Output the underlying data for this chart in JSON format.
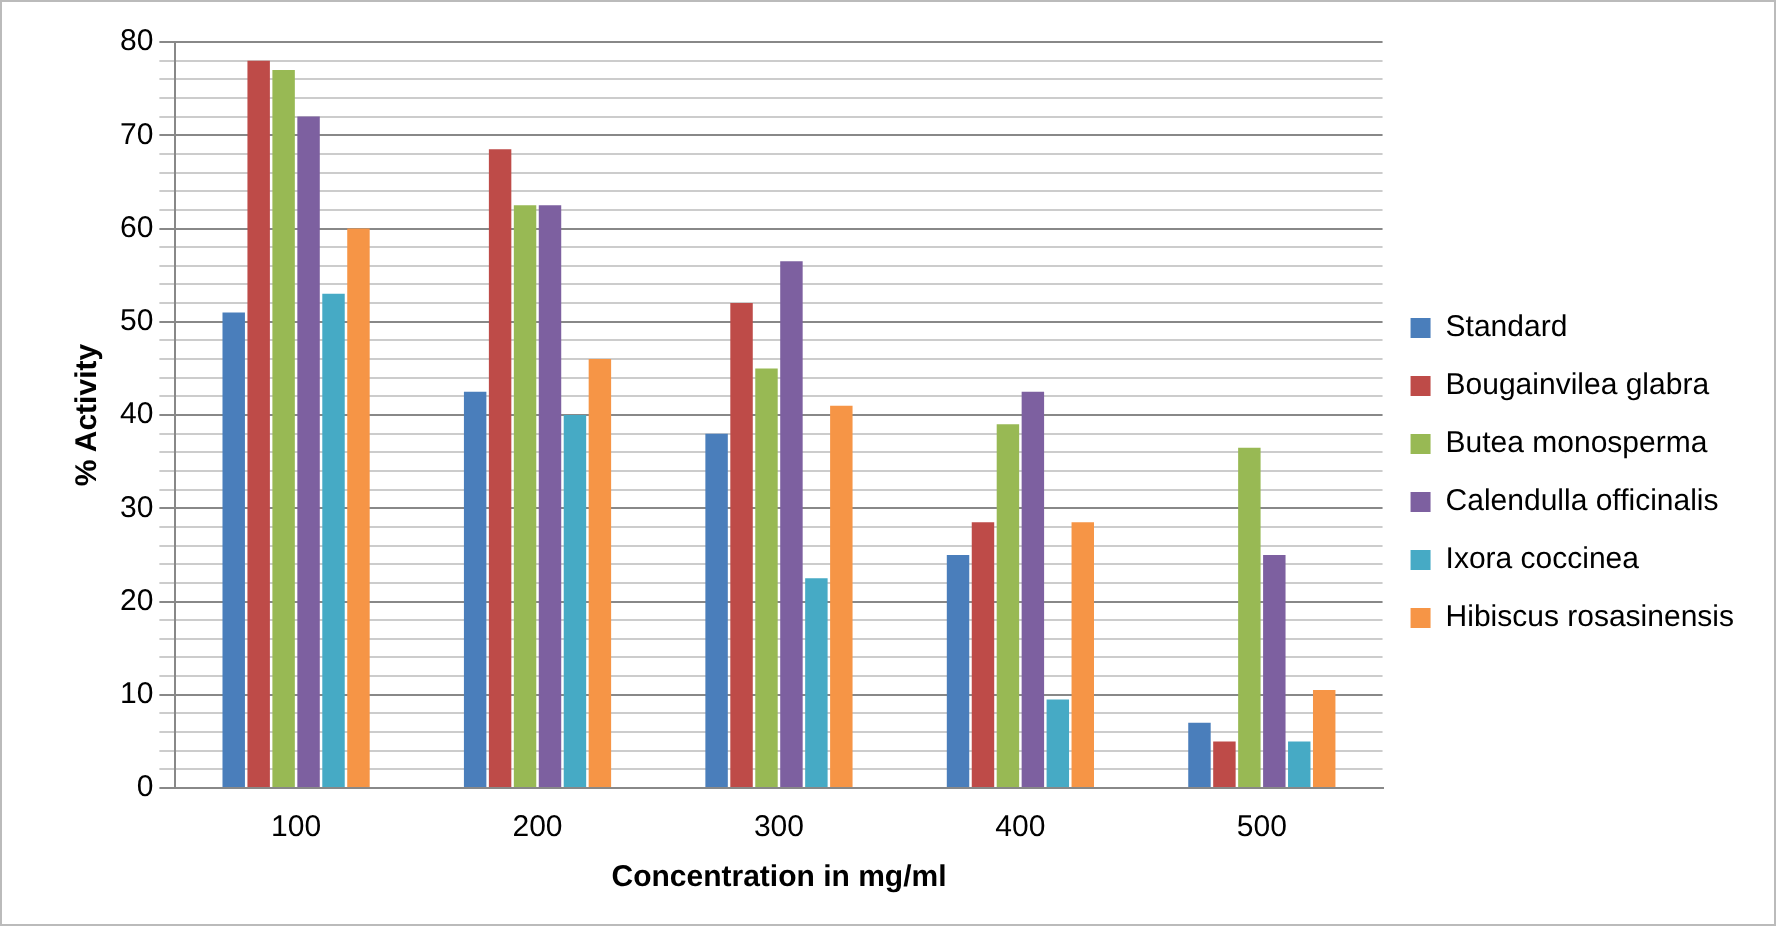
{
  "chart_data": {
    "type": "bar",
    "xlabel": "Concentration in mg/ml",
    "ylabel": "% Activity",
    "categories": [
      "100",
      "200",
      "300",
      "400",
      "500"
    ],
    "series": [
      {
        "name": "Standard",
        "color": "#4a7ebb",
        "values": [
          51,
          42.5,
          38,
          25,
          7
        ]
      },
      {
        "name": "Bougainvilea glabra",
        "color": "#be4b48",
        "values": [
          78,
          68.5,
          52,
          28.5,
          5
        ]
      },
      {
        "name": "Butea monosperma",
        "color": "#98b954",
        "values": [
          77,
          62.5,
          45,
          39,
          36.5
        ]
      },
      {
        "name": "Calendulla officinalis",
        "color": "#7d60a0",
        "values": [
          72,
          62.5,
          56.5,
          42.5,
          25
        ]
      },
      {
        "name": "Ixora coccinea",
        "color": "#46aac5",
        "values": [
          53,
          40,
          22.5,
          9.5,
          5
        ]
      },
      {
        "name": "Hibiscus rosasinensis",
        "color": "#f69546",
        "values": [
          60,
          46,
          41,
          28.5,
          10.5
        ]
      }
    ],
    "ylim": [
      0,
      80
    ],
    "yticks": [
      0,
      {
        "value": 2,
        "label": null
      },
      {
        "value": 4,
        "label": null
      },
      {
        "value": 6,
        "label": null
      },
      {
        "value": 8,
        "label": null
      },
      10,
      {
        "value": 12,
        "label": null
      },
      {
        "value": 14,
        "label": null
      },
      {
        "value": 16,
        "label": null
      },
      {
        "value": 18,
        "label": null
      },
      20,
      {
        "value": 22,
        "label": null
      },
      {
        "value": 24,
        "label": null
      },
      {
        "value": 26,
        "label": null
      },
      {
        "value": 28,
        "label": null
      },
      30,
      {
        "value": 32,
        "label": null
      },
      {
        "value": 34,
        "label": null
      },
      {
        "value": 36,
        "label": null
      },
      {
        "value": 38,
        "label": null
      },
      40,
      {
        "value": 42,
        "label": null
      },
      {
        "value": 44,
        "label": null
      },
      {
        "value": 46,
        "label": null
      },
      {
        "value": 48,
        "label": null
      },
      50,
      {
        "value": 52,
        "label": null
      },
      {
        "value": 54,
        "label": null
      },
      {
        "value": 56,
        "label": null
      },
      {
        "value": 58,
        "label": null
      },
      60,
      {
        "value": 62,
        "label": null
      },
      {
        "value": 64,
        "label": null
      },
      {
        "value": 66,
        "label": null
      },
      {
        "value": 68,
        "label": null
      },
      70,
      {
        "value": 72,
        "label": null
      },
      {
        "value": 74,
        "label": null
      },
      {
        "value": 76,
        "label": null
      },
      {
        "value": 78,
        "label": null
      },
      80
    ],
    "grid": "y",
    "legend": "right"
  }
}
